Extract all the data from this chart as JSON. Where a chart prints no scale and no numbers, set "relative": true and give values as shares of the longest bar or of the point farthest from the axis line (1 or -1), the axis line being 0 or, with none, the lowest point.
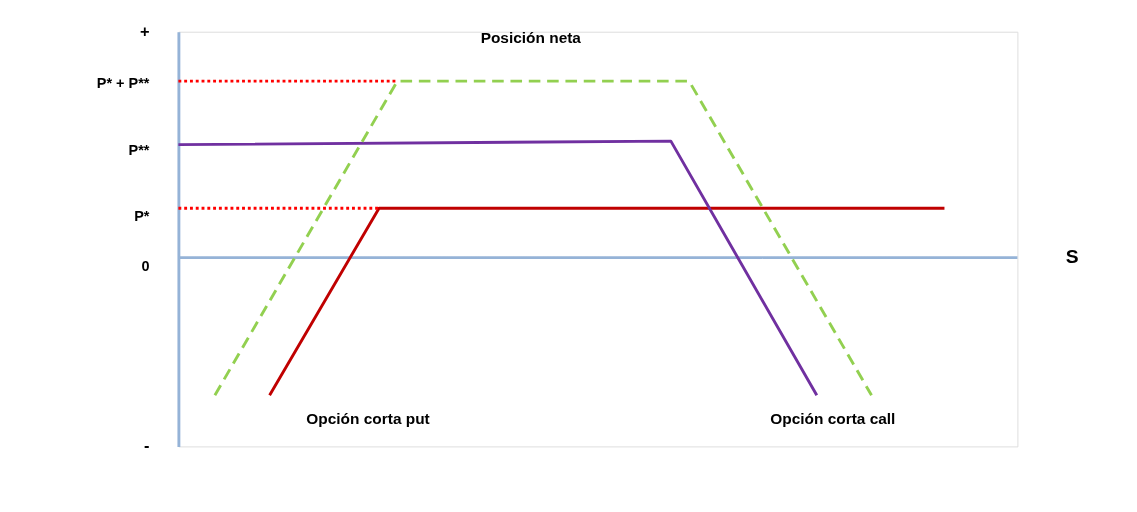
{
  "chart_data": {
    "type": "line",
    "relative": true,
    "xlabel": "S",
    "categories": [
      null,
      null,
      null,
      null,
      null,
      null,
      null,
      null,
      null,
      null,
      null,
      null,
      null,
      null,
      null,
      null,
      null,
      null,
      null,
      null,
      null,
      null,
      null,
      null,
      null,
      null,
      null,
      null,
      null,
      null,
      null,
      null,
      null,
      null,
      null,
      null,
      null,
      null,
      null,
      null,
      null,
      null,
      null,
      null,
      null,
      null,
      null
    ],
    "grid": false,
    "legend": false,
    "marker": "none",
    "series": [
      {
        "name": "Opción corta  put",
        "color": "#c00000",
        "line_style": "solid",
        "values": [
          null,
          null,
          null,
          null,
          null,
          -0.78,
          null,
          null,
          null,
          null,
          null,
          0.28,
          null,
          null,
          null,
          null,
          null,
          null,
          null,
          null,
          null,
          null,
          null,
          null,
          null,
          null,
          null,
          null,
          null,
          null,
          null,
          null,
          null,
          null,
          null,
          null,
          null,
          null,
          null,
          null,
          null,
          null,
          0.28,
          null,
          null,
          null,
          null
        ]
      },
      {
        "name": "Opción corta call",
        "color": "#7030a0",
        "line_style": "solid",
        "values": [
          0.64,
          null,
          null,
          null,
          null,
          null,
          null,
          null,
          null,
          null,
          null,
          null,
          null,
          null,
          null,
          null,
          null,
          null,
          null,
          null,
          null,
          null,
          null,
          null,
          null,
          null,
          null,
          0.66,
          null,
          null,
          null,
          null,
          null,
          null,
          null,
          -0.78,
          null,
          null,
          null,
          null,
          null,
          null,
          null,
          null,
          null,
          null,
          null
        ]
      },
      {
        "name": "Posición neta",
        "color": "#92d050",
        "line_style": "dashed",
        "values": [
          null,
          null,
          -0.78,
          null,
          null,
          null,
          null,
          null,
          null,
          null,
          null,
          null,
          1,
          null,
          null,
          null,
          null,
          null,
          null,
          null,
          null,
          null,
          null,
          null,
          null,
          null,
          null,
          null,
          1,
          null,
          null,
          null,
          null,
          null,
          null,
          null,
          null,
          null,
          -0.78,
          null,
          null,
          null,
          null,
          null,
          null,
          null,
          null
        ]
      },
      {
        "color": "#ff0000",
        "line_style": "dotted",
        "values": [
          1,
          null,
          null,
          null,
          null,
          null,
          null,
          null,
          null,
          null,
          null,
          null,
          1,
          null,
          null,
          null,
          null,
          null,
          null,
          null,
          null,
          null,
          null,
          null,
          null,
          null,
          null,
          null,
          null,
          null,
          null,
          null,
          null,
          null,
          null,
          null,
          null,
          null,
          null,
          null,
          null,
          null,
          null,
          null,
          null,
          null,
          null
        ]
      },
      {
        "color": "#ff0000",
        "line_style": "dotted",
        "values": [
          0.28,
          null,
          null,
          null,
          null,
          null,
          null,
          null,
          null,
          null,
          null,
          0.28,
          null,
          null,
          null,
          null,
          null,
          null,
          null,
          null,
          null,
          null,
          null,
          null,
          null,
          null,
          null,
          null,
          null,
          null,
          null,
          null,
          null,
          null,
          null,
          null,
          null,
          null,
          null,
          null,
          null,
          null,
          null,
          null,
          null,
          null,
          null
        ]
      }
    ],
    "ref_lines": [
      {
        "axis": "y",
        "value": 0,
        "color": "#95b3d7"
      }
    ],
    "annotations": [
      "+",
      "-",
      "P* + P**",
      "P**",
      "P*",
      "0"
    ]
  }
}
